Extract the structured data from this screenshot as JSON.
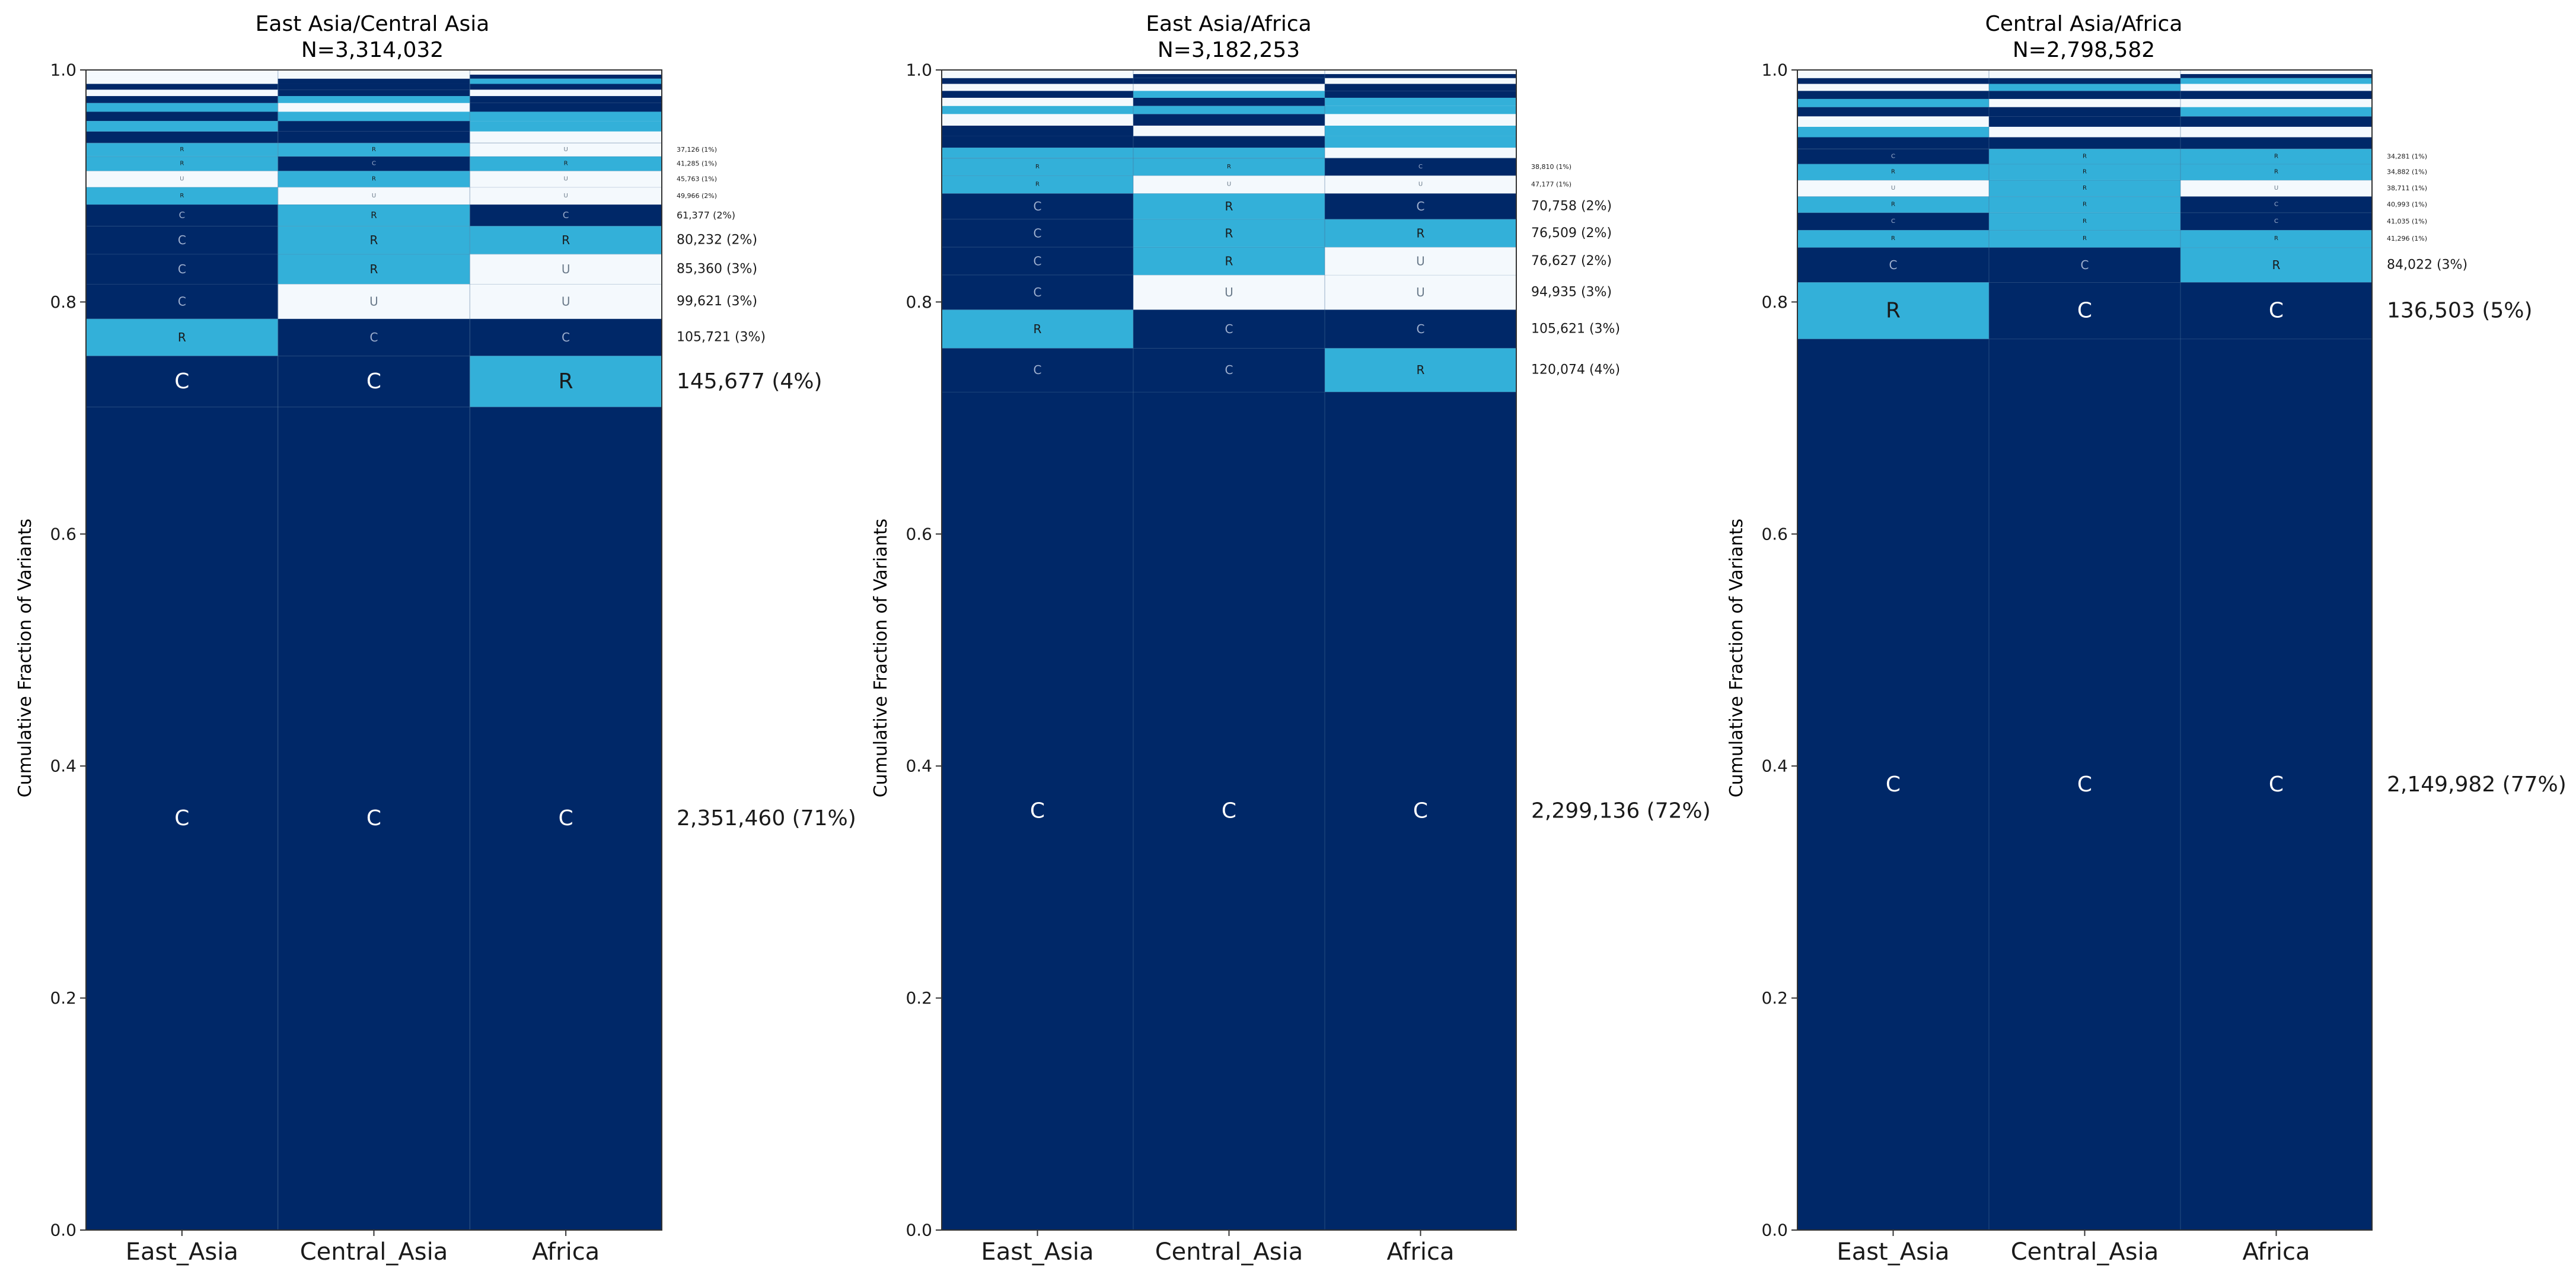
{
  "colors": {
    "C": "#002868",
    "R": "#33b0d9",
    "U": "#f4f9fd",
    "axis_text": "#1a1a1a",
    "cell_text_dark": "#ffffff",
    "cell_text_light": "#1a1a1a"
  },
  "chart_data": [
    {
      "type": "stacked-bar",
      "title": "East Asia/Central Asia",
      "subtitle": "N=3,314,032",
      "ylabel": "Cumulative Fraction of Variants",
      "ylim": [
        0,
        1
      ],
      "yticks": [
        "0.0",
        "0.2",
        "0.4",
        "0.6",
        "0.8",
        "1.0"
      ],
      "categories": [
        "East_Asia",
        "Central_Asia",
        "Africa"
      ],
      "labeled_segments": [
        {
          "start": 0.0,
          "end": 0.7096,
          "codes": [
            "C",
            "C",
            "C"
          ],
          "label": "2,351,460 (71%)",
          "size": "large"
        },
        {
          "start": 0.7096,
          "end": 0.7536,
          "codes": [
            "C",
            "C",
            "R"
          ],
          "label": "145,677 (4%)",
          "size": "large"
        },
        {
          "start": 0.7536,
          "end": 0.7855,
          "codes": [
            "R",
            "C",
            "C"
          ],
          "label": "105,721 (3%)",
          "size": "medium"
        },
        {
          "start": 0.7855,
          "end": 0.8155,
          "codes": [
            "C",
            "U",
            "U"
          ],
          "label": "99,621 (3%)",
          "size": "medium"
        },
        {
          "start": 0.8155,
          "end": 0.8413,
          "codes": [
            "C",
            "R",
            "U"
          ],
          "label": "85,360 (3%)",
          "size": "medium"
        },
        {
          "start": 0.8413,
          "end": 0.8655,
          "codes": [
            "C",
            "R",
            "R"
          ],
          "label": "80,232 (2%)",
          "size": "medium"
        },
        {
          "start": 0.8655,
          "end": 0.884,
          "codes": [
            "C",
            "R",
            "C"
          ],
          "label": "61,377 (2%)",
          "size": "small"
        },
        {
          "start": 0.884,
          "end": 0.899,
          "codes": [
            "R",
            "U",
            "U"
          ],
          "label": "49,966 (2%)",
          "size": "tiny"
        },
        {
          "start": 0.899,
          "end": 0.913,
          "codes": [
            "U",
            "R",
            "U"
          ],
          "label": "45,763 (1%)",
          "size": "tiny"
        },
        {
          "start": 0.913,
          "end": 0.9255,
          "codes": [
            "R",
            "C",
            "R"
          ],
          "label": "41,285 (1%)",
          "size": "tiny"
        },
        {
          "start": 0.9255,
          "end": 0.937,
          "codes": [
            "R",
            "R",
            "U"
          ],
          "label": "37,126 (1%)",
          "size": "tiny"
        }
      ],
      "thin_segments": [
        {
          "start": 0.937,
          "end": 0.947,
          "codes": [
            "C",
            "C",
            "U"
          ]
        },
        {
          "start": 0.947,
          "end": 0.956,
          "codes": [
            "R",
            "C",
            "R"
          ]
        },
        {
          "start": 0.956,
          "end": 0.964,
          "codes": [
            "C",
            "R",
            "R"
          ]
        },
        {
          "start": 0.964,
          "end": 0.9715,
          "codes": [
            "R",
            "U",
            "C"
          ]
        },
        {
          "start": 0.9715,
          "end": 0.9775,
          "codes": [
            "C",
            "R",
            "C"
          ]
        },
        {
          "start": 0.9775,
          "end": 0.983,
          "codes": [
            "U",
            "C",
            "U"
          ]
        },
        {
          "start": 0.983,
          "end": 0.988,
          "codes": [
            "C",
            "C",
            "C"
          ]
        },
        {
          "start": 0.988,
          "end": 0.9925,
          "codes": [
            "U",
            "C",
            "R"
          ]
        },
        {
          "start": 0.9925,
          "end": 0.996,
          "codes": [
            "U",
            "U",
            "C"
          ]
        },
        {
          "start": 0.996,
          "end": 1.0,
          "codes": [
            "U",
            "U",
            "U"
          ]
        }
      ]
    },
    {
      "type": "stacked-bar",
      "title": "East Asia/Africa",
      "subtitle": "N=3,182,253",
      "ylabel": "Cumulative Fraction of Variants",
      "ylim": [
        0,
        1
      ],
      "yticks": [
        "0.0",
        "0.2",
        "0.4",
        "0.6",
        "0.8",
        "1.0"
      ],
      "categories": [
        "East_Asia",
        "Central_Asia",
        "Africa"
      ],
      "labeled_segments": [
        {
          "start": 0.0,
          "end": 0.7225,
          "codes": [
            "C",
            "C",
            "C"
          ],
          "label": "2,299,136 (72%)",
          "size": "large"
        },
        {
          "start": 0.7225,
          "end": 0.7602,
          "codes": [
            "C",
            "C",
            "R"
          ],
          "label": "120,074 (4%)",
          "size": "medium"
        },
        {
          "start": 0.7602,
          "end": 0.7934,
          "codes": [
            "R",
            "C",
            "C"
          ],
          "label": "105,621 (3%)",
          "size": "medium"
        },
        {
          "start": 0.7934,
          "end": 0.8233,
          "codes": [
            "C",
            "U",
            "U"
          ],
          "label": "94,935 (3%)",
          "size": "medium"
        },
        {
          "start": 0.8233,
          "end": 0.8473,
          "codes": [
            "C",
            "R",
            "U"
          ],
          "label": "76,627 (2%)",
          "size": "medium"
        },
        {
          "start": 0.8473,
          "end": 0.8714,
          "codes": [
            "C",
            "R",
            "R"
          ],
          "label": "76,509 (2%)",
          "size": "medium"
        },
        {
          "start": 0.8714,
          "end": 0.8936,
          "codes": [
            "C",
            "R",
            "C"
          ],
          "label": "70,758 (2%)",
          "size": "medium"
        },
        {
          "start": 0.8936,
          "end": 0.909,
          "codes": [
            "R",
            "U",
            "U"
          ],
          "label": "47,177 (1%)",
          "size": "tiny"
        },
        {
          "start": 0.909,
          "end": 0.924,
          "codes": [
            "R",
            "R",
            "C"
          ],
          "label": "38,810 (1%)",
          "size": "tiny"
        }
      ],
      "thin_segments": [
        {
          "start": 0.924,
          "end": 0.933,
          "codes": [
            "R",
            "R",
            "U"
          ]
        },
        {
          "start": 0.933,
          "end": 0.943,
          "codes": [
            "C",
            "C",
            "R"
          ]
        },
        {
          "start": 0.943,
          "end": 0.952,
          "codes": [
            "C",
            "U",
            "R"
          ]
        },
        {
          "start": 0.952,
          "end": 0.962,
          "codes": [
            "U",
            "C",
            "U"
          ]
        },
        {
          "start": 0.962,
          "end": 0.969,
          "codes": [
            "R",
            "R",
            "R"
          ]
        },
        {
          "start": 0.969,
          "end": 0.976,
          "codes": [
            "U",
            "C",
            "R"
          ]
        },
        {
          "start": 0.976,
          "end": 0.982,
          "codes": [
            "C",
            "R",
            "C"
          ]
        },
        {
          "start": 0.982,
          "end": 0.988,
          "codes": [
            "U",
            "U",
            "C"
          ]
        },
        {
          "start": 0.988,
          "end": 0.993,
          "codes": [
            "C",
            "C",
            "U"
          ]
        },
        {
          "start": 0.993,
          "end": 0.9965,
          "codes": [
            "U",
            "C",
            "C"
          ]
        },
        {
          "start": 0.9965,
          "end": 1.0,
          "codes": [
            "U",
            "U",
            "U"
          ]
        }
      ]
    },
    {
      "type": "stacked-bar",
      "title": "Central Asia/Africa",
      "subtitle": "N=2,798,582",
      "ylabel": "Cumulative Fraction of Variants",
      "ylim": [
        0,
        1
      ],
      "yticks": [
        "0.0",
        "0.2",
        "0.4",
        "0.6",
        "0.8",
        "1.0"
      ],
      "categories": [
        "East_Asia",
        "Central_Asia",
        "Africa"
      ],
      "labeled_segments": [
        {
          "start": 0.0,
          "end": 0.7682,
          "codes": [
            "C",
            "C",
            "C"
          ],
          "label": "2,149,982 (77%)",
          "size": "large"
        },
        {
          "start": 0.7682,
          "end": 0.817,
          "codes": [
            "R",
            "C",
            "C"
          ],
          "label": "136,503 (5%)",
          "size": "large"
        },
        {
          "start": 0.817,
          "end": 0.847,
          "codes": [
            "C",
            "C",
            "R"
          ],
          "label": "84,022 (3%)",
          "size": "medium"
        },
        {
          "start": 0.847,
          "end": 0.862,
          "codes": [
            "R",
            "R",
            "R"
          ],
          "label": "41,296 (1%)",
          "size": "tiny"
        },
        {
          "start": 0.862,
          "end": 0.877,
          "codes": [
            "C",
            "R",
            "C"
          ],
          "label": "41,035 (1%)",
          "size": "tiny"
        },
        {
          "start": 0.877,
          "end": 0.891,
          "codes": [
            "R",
            "R",
            "C"
          ],
          "label": "40,993 (1%)",
          "size": "tiny"
        },
        {
          "start": 0.891,
          "end": 0.905,
          "codes": [
            "U",
            "R",
            "U"
          ],
          "label": "38,711 (1%)",
          "size": "tiny"
        },
        {
          "start": 0.905,
          "end": 0.919,
          "codes": [
            "R",
            "R",
            "R"
          ],
          "label": "34,882 (1%)",
          "size": "tiny"
        },
        {
          "start": 0.919,
          "end": 0.932,
          "codes": [
            "C",
            "R",
            "R"
          ],
          "label": "34,281 (1%)",
          "size": "tiny"
        }
      ],
      "thin_segments": [
        {
          "start": 0.932,
          "end": 0.942,
          "codes": [
            "C",
            "C",
            "C"
          ]
        },
        {
          "start": 0.942,
          "end": 0.951,
          "codes": [
            "R",
            "U",
            "U"
          ]
        },
        {
          "start": 0.951,
          "end": 0.96,
          "codes": [
            "U",
            "C",
            "C"
          ]
        },
        {
          "start": 0.96,
          "end": 0.968,
          "codes": [
            "C",
            "C",
            "R"
          ]
        },
        {
          "start": 0.968,
          "end": 0.975,
          "codes": [
            "R",
            "U",
            "U"
          ]
        },
        {
          "start": 0.975,
          "end": 0.982,
          "codes": [
            "C",
            "C",
            "C"
          ]
        },
        {
          "start": 0.982,
          "end": 0.988,
          "codes": [
            "U",
            "R",
            "U"
          ]
        },
        {
          "start": 0.988,
          "end": 0.993,
          "codes": [
            "C",
            "C",
            "R"
          ]
        },
        {
          "start": 0.993,
          "end": 0.9965,
          "codes": [
            "U",
            "U",
            "C"
          ]
        },
        {
          "start": 0.9965,
          "end": 1.0,
          "codes": [
            "U",
            "U",
            "U"
          ]
        }
      ]
    }
  ]
}
